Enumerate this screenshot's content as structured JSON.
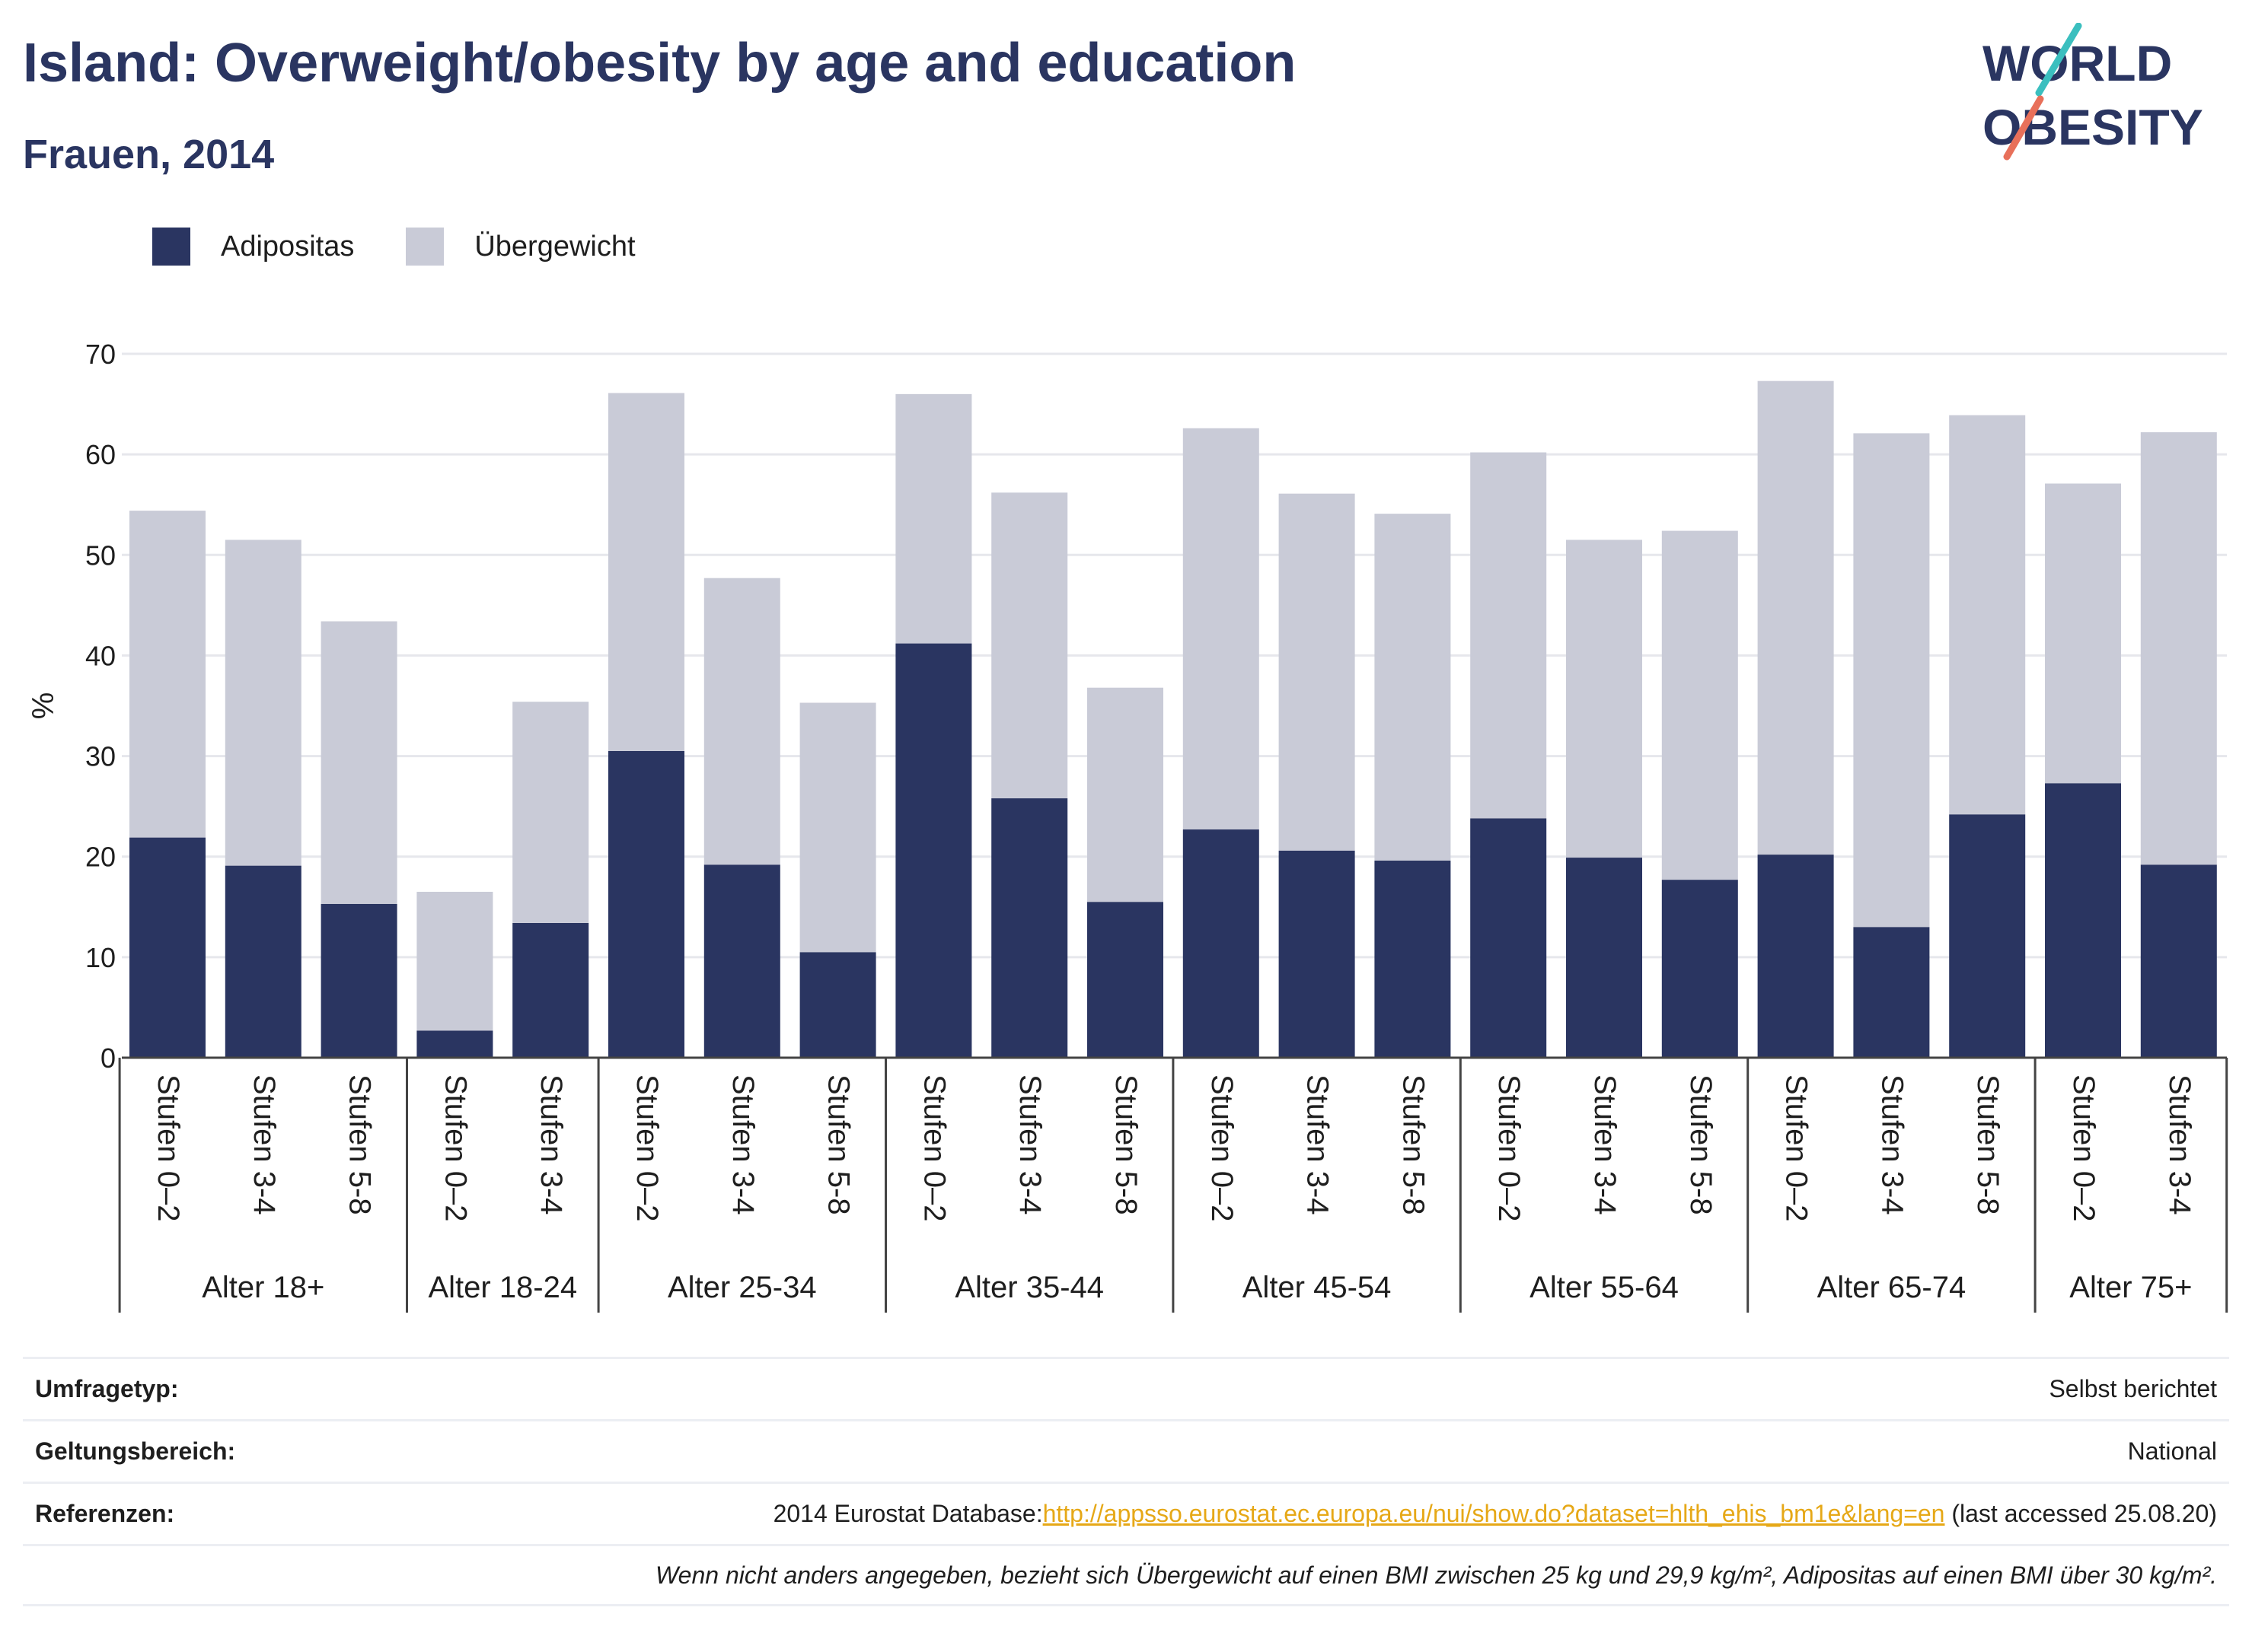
{
  "title": "Island: Overweight/obesity by age and education",
  "subtitle": "Frauen, 2014",
  "logo": {
    "line1": "WORLD",
    "line2": "OBESITY"
  },
  "colors": {
    "adipositas": "#2a3561",
    "uebergewicht": "#c9cbd7",
    "title": "#2a3561",
    "link": "#e6a817"
  },
  "legend": [
    {
      "label": "Adipositas",
      "color": "#2a3561"
    },
    {
      "label": "Übergewicht",
      "color": "#c9cbd7"
    }
  ],
  "chart_data": {
    "type": "bar",
    "stacked": true,
    "ylabel": "%",
    "ylim": [
      0,
      70
    ],
    "yticks": [
      0,
      10,
      20,
      30,
      40,
      50,
      60,
      70
    ],
    "grid": true,
    "legend_position": "top-left",
    "groups": [
      {
        "label": "Alter 18+",
        "categories": [
          "Stufen 0–2",
          "Stufen 3-4",
          "Stufen 5-8"
        ]
      },
      {
        "label": "Alter 18-24",
        "categories": [
          "Stufen 0–2",
          "Stufen 3-4"
        ]
      },
      {
        "label": "Alter 25-34",
        "categories": [
          "Stufen 0–2",
          "Stufen 3-4",
          "Stufen 5-8"
        ]
      },
      {
        "label": "Alter 35-44",
        "categories": [
          "Stufen 0–2",
          "Stufen 3-4",
          "Stufen 5-8"
        ]
      },
      {
        "label": "Alter 45-54",
        "categories": [
          "Stufen 0–2",
          "Stufen 3-4",
          "Stufen 5-8"
        ]
      },
      {
        "label": "Alter 55-64",
        "categories": [
          "Stufen 0–2",
          "Stufen 3-4",
          "Stufen 5-8"
        ]
      },
      {
        "label": "Alter 65-74",
        "categories": [
          "Stufen 0–2",
          "Stufen 3-4",
          "Stufen 5-8"
        ]
      },
      {
        "label": "Alter 75+",
        "categories": [
          "Stufen 0–2",
          "Stufen 3-4"
        ]
      }
    ],
    "series": [
      {
        "name": "Adipositas",
        "values": [
          21.9,
          19.1,
          15.3,
          2.7,
          13.4,
          30.5,
          19.2,
          10.5,
          41.2,
          25.8,
          15.5,
          22.7,
          20.6,
          19.6,
          23.8,
          19.9,
          17.7,
          20.2,
          13.0,
          24.2,
          27.3,
          19.2
        ]
      },
      {
        "name": "Übergewicht",
        "values": [
          32.5,
          32.4,
          28.1,
          13.8,
          22.0,
          35.6,
          28.5,
          24.8,
          24.8,
          30.4,
          21.3,
          39.9,
          35.5,
          34.5,
          36.4,
          31.6,
          34.7,
          47.1,
          49.1,
          39.7,
          29.8,
          43.0
        ]
      }
    ]
  },
  "meta": {
    "survey_type_label": "Umfragetyp:",
    "survey_type_value": "Selbst berichtet",
    "scope_label": "Geltungsbereich:",
    "scope_value": "National",
    "references_label": "Referenzen:",
    "references_prefix": "2014 Eurostat Database:",
    "references_link": "http://appsso.eurostat.ec.europa.eu/nui/show.do?dataset=hlth_ehis_bm1e&lang=en",
    "references_suffix": " (last accessed 25.08.20)",
    "note": "Wenn nicht anders angegeben, bezieht sich Übergewicht auf einen BMI zwischen 25 kg und 29,9 kg/m², Adipositas auf einen BMI über 30 kg/m²."
  }
}
